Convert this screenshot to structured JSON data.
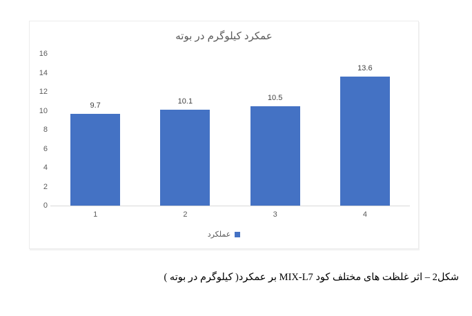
{
  "chart_data": {
    "type": "bar",
    "title": "عمکرد کیلوگرم در بوته",
    "categories": [
      "1",
      "2",
      "3",
      "4"
    ],
    "values": [
      9.7,
      10.1,
      10.5,
      13.6
    ],
    "value_labels": [
      "9.7",
      "10.1",
      "10.5",
      "13.6"
    ],
    "series_name": "عملکرد",
    "xlabel": "",
    "ylabel": "",
    "ylim": [
      0,
      16
    ],
    "yticks": [
      0,
      2,
      4,
      6,
      8,
      10,
      12,
      14,
      16
    ],
    "grid": false,
    "legend_position": "bottom",
    "bar_color": "#4472c4",
    "axis_line_color": "#d9d9d9",
    "label_color": "#595959",
    "data_label_color": "#404040"
  },
  "caption": "شکل2 – اثر غلظت های مختلف کود MIX-L7 بر عمکرد( کیلوگرم در بوته )"
}
